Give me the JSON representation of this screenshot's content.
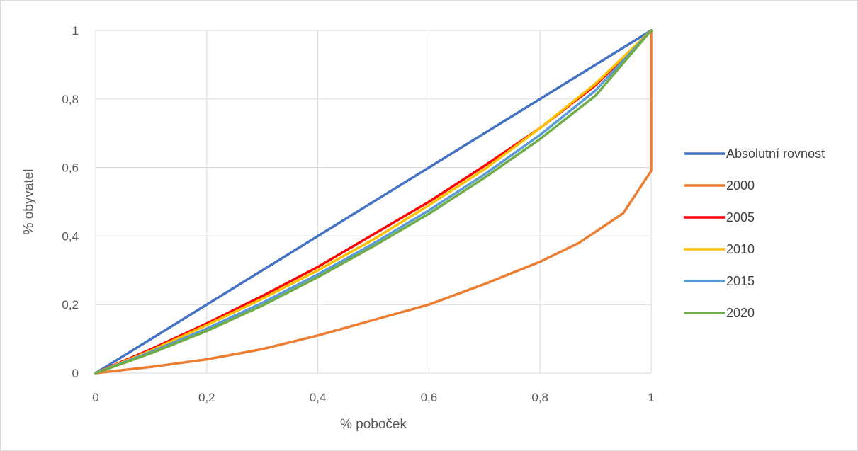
{
  "chart_data": {
    "type": "line",
    "xlabel": "% poboček",
    "ylabel": "% obyvatel",
    "xlim": [
      0,
      1
    ],
    "ylim": [
      0,
      1
    ],
    "x_ticks": [
      0,
      0.2,
      0.4,
      0.6,
      0.8,
      1
    ],
    "y_ticks": [
      0,
      0.2,
      0.4,
      0.6,
      0.8,
      1
    ],
    "x_tick_labels": [
      "0",
      "0,2",
      "0,4",
      "0,6",
      "0,8",
      "1"
    ],
    "y_tick_labels": [
      "0",
      "0,2",
      "0,4",
      "0,6",
      "0,8",
      "1"
    ],
    "grid": true,
    "legend_position": "right",
    "series": [
      {
        "name": "Absolutní rovnost",
        "color": "#4472C4",
        "points": [
          [
            0,
            0
          ],
          [
            1,
            1
          ]
        ]
      },
      {
        "name": "2000",
        "color": "#ED7D31",
        "points": [
          [
            0,
            0
          ],
          [
            0.1,
            0.018
          ],
          [
            0.2,
            0.04
          ],
          [
            0.3,
            0.07
          ],
          [
            0.4,
            0.11
          ],
          [
            0.5,
            0.155
          ],
          [
            0.6,
            0.2
          ],
          [
            0.7,
            0.26
          ],
          [
            0.8,
            0.325
          ],
          [
            0.87,
            0.38
          ],
          [
            0.95,
            0.467
          ],
          [
            1,
            0.59
          ],
          [
            1,
            1
          ]
        ]
      },
      {
        "name": "2005",
        "color": "#FF0000",
        "points": [
          [
            0,
            0
          ],
          [
            0.1,
            0.07
          ],
          [
            0.2,
            0.145
          ],
          [
            0.3,
            0.225
          ],
          [
            0.4,
            0.31
          ],
          [
            0.5,
            0.405
          ],
          [
            0.6,
            0.5
          ],
          [
            0.7,
            0.605
          ],
          [
            0.8,
            0.715
          ],
          [
            0.9,
            0.84
          ],
          [
            1,
            1
          ]
        ]
      },
      {
        "name": "2010",
        "color": "#FFC000",
        "points": [
          [
            0,
            0
          ],
          [
            0.1,
            0.066
          ],
          [
            0.2,
            0.14
          ],
          [
            0.3,
            0.217
          ],
          [
            0.4,
            0.3
          ],
          [
            0.5,
            0.39
          ],
          [
            0.6,
            0.49
          ],
          [
            0.7,
            0.595
          ],
          [
            0.8,
            0.715
          ],
          [
            0.9,
            0.845
          ],
          [
            1,
            1
          ]
        ]
      },
      {
        "name": "2015",
        "color": "#5B9BD5",
        "points": [
          [
            0,
            0
          ],
          [
            0.1,
            0.062
          ],
          [
            0.2,
            0.13
          ],
          [
            0.3,
            0.205
          ],
          [
            0.4,
            0.288
          ],
          [
            0.5,
            0.378
          ],
          [
            0.6,
            0.475
          ],
          [
            0.7,
            0.58
          ],
          [
            0.8,
            0.695
          ],
          [
            0.9,
            0.825
          ],
          [
            1,
            1
          ]
        ]
      },
      {
        "name": "2020",
        "color": "#70AD47",
        "points": [
          [
            0,
            0
          ],
          [
            0.1,
            0.058
          ],
          [
            0.2,
            0.123
          ],
          [
            0.3,
            0.197
          ],
          [
            0.4,
            0.28
          ],
          [
            0.5,
            0.37
          ],
          [
            0.6,
            0.465
          ],
          [
            0.7,
            0.57
          ],
          [
            0.8,
            0.683
          ],
          [
            0.9,
            0.81
          ],
          [
            1,
            1
          ]
        ]
      }
    ]
  }
}
